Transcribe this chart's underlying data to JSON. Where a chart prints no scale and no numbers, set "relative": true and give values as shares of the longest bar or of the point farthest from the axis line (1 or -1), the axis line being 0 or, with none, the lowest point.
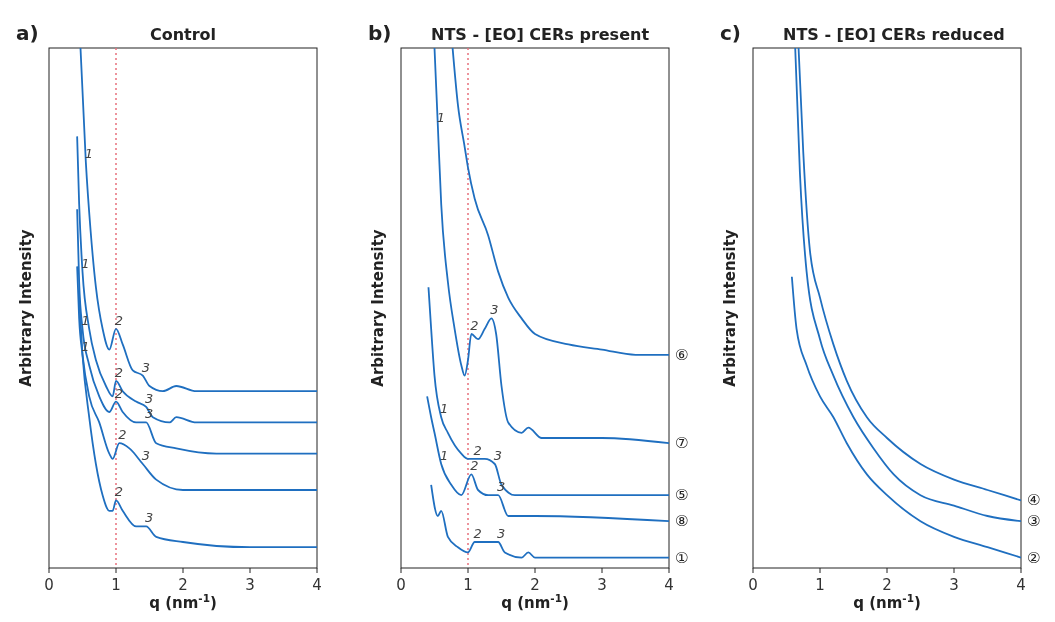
{
  "chart_data": [
    {
      "type": "line",
      "title": "Control",
      "xlabel": "q (nm$^{-1}$)",
      "ylabel": "Arbitrary Intensity",
      "relative": true,
      "xlim": [
        0,
        4
      ],
      "xticks": [
        0,
        1,
        2,
        3,
        4
      ],
      "line_style": "solid",
      "ref_lines": [
        {
          "axis": "x",
          "value": 1,
          "color": "#e8707c",
          "line_style": "dotted"
        }
      ],
      "annotations": [
        "a)",
        {
          "text": "1",
          "x": 0.55,
          "y": 0.78
        },
        {
          "text": "1",
          "x": 0.5,
          "y": 0.57
        },
        {
          "text": "1",
          "x": 0.5,
          "y": 0.46
        },
        {
          "text": "1",
          "x": 0.5,
          "y": 0.41
        },
        {
          "text": "2",
          "x": 1.0,
          "y": 0.46
        },
        {
          "text": "2",
          "x": 1.0,
          "y": 0.36
        },
        {
          "text": "2",
          "x": 1.0,
          "y": 0.32
        },
        {
          "text": "2",
          "x": 1.05,
          "y": 0.24
        },
        {
          "text": "2",
          "x": 1.0,
          "y": 0.13
        },
        {
          "text": "3",
          "x": 1.4,
          "y": 0.37
        },
        {
          "text": "3",
          "x": 1.45,
          "y": 0.31
        },
        {
          "text": "3",
          "x": 1.45,
          "y": 0.28
        },
        {
          "text": "3",
          "x": 1.4,
          "y": 0.2
        },
        {
          "text": "3",
          "x": 1.45,
          "y": 0.08
        }
      ],
      "series": [
        {
          "color": "#1f6fc0",
          "x": [
            0.47,
            0.55,
            0.62,
            0.7,
            0.8,
            0.9,
            1.0,
            1.1,
            1.25,
            1.4,
            1.5,
            1.7,
            1.9,
            2.2,
            3,
            4
          ],
          "values": [
            1.0,
            0.78,
            0.65,
            0.54,
            0.46,
            0.42,
            0.46,
            0.43,
            0.38,
            0.37,
            0.35,
            0.34,
            0.35,
            0.34,
            0.34,
            0.34
          ]
        },
        {
          "color": "#1f6fc0",
          "x": [
            0.42,
            0.45,
            0.5,
            0.6,
            0.7,
            0.85,
            0.95,
            1.0,
            1.1,
            1.3,
            1.45,
            1.55,
            1.8,
            1.9,
            2.2,
            4
          ],
          "values": [
            0.83,
            0.7,
            0.57,
            0.46,
            0.4,
            0.35,
            0.33,
            0.36,
            0.34,
            0.32,
            0.31,
            0.29,
            0.28,
            0.29,
            0.28,
            0.28
          ]
        },
        {
          "color": "#1f6fc0",
          "x": [
            0.42,
            0.45,
            0.5,
            0.6,
            0.75,
            0.9,
            1.0,
            1.1,
            1.3,
            1.45,
            1.6,
            1.9,
            2.5,
            4
          ],
          "values": [
            0.69,
            0.55,
            0.46,
            0.39,
            0.33,
            0.3,
            0.32,
            0.3,
            0.28,
            0.28,
            0.24,
            0.23,
            0.22,
            0.22
          ]
        },
        {
          "color": "#1f6fc0",
          "x": [
            0.42,
            0.45,
            0.5,
            0.6,
            0.75,
            0.9,
            0.95,
            1.05,
            1.2,
            1.4,
            1.6,
            2,
            3,
            4
          ],
          "values": [
            0.58,
            0.48,
            0.41,
            0.33,
            0.28,
            0.22,
            0.21,
            0.24,
            0.23,
            0.2,
            0.17,
            0.15,
            0.15,
            0.15
          ]
        },
        {
          "color": "#1f6fc0",
          "x": [
            0.45,
            0.5,
            0.6,
            0.7,
            0.8,
            0.9,
            0.95,
            1.0,
            1.1,
            1.3,
            1.45,
            1.6,
            2,
            3,
            4
          ],
          "values": [
            0.52,
            0.41,
            0.29,
            0.2,
            0.14,
            0.11,
            0.11,
            0.13,
            0.11,
            0.08,
            0.08,
            0.06,
            0.05,
            0.04,
            0.04
          ]
        }
      ]
    },
    {
      "type": "line",
      "title": "NTS - [EO] CERs present",
      "xlabel": "q (nm$^{-1}$)",
      "ylabel": "Arbitrary Intensity",
      "relative": true,
      "xlim": [
        0,
        4
      ],
      "xticks": [
        0,
        1,
        2,
        3,
        4
      ],
      "line_style": "solid",
      "ref_lines": [
        {
          "axis": "x",
          "value": 1,
          "color": "#e8707c",
          "line_style": "dotted"
        }
      ],
      "annotations": [
        "b)",
        {
          "text": "1",
          "x": 0.55,
          "y": 0.85
        },
        {
          "text": "2",
          "x": 1.05,
          "y": 0.45
        },
        {
          "text": "3",
          "x": 1.35,
          "y": 0.48
        },
        {
          "text": "1",
          "x": 0.6,
          "y": 0.29
        },
        {
          "text": "2",
          "x": 1.1,
          "y": 0.21
        },
        {
          "text": "3",
          "x": 1.4,
          "y": 0.2
        },
        {
          "text": "1",
          "x": 0.6,
          "y": 0.2
        },
        {
          "text": "2",
          "x": 1.05,
          "y": 0.18
        },
        {
          "text": "3",
          "x": 1.45,
          "y": 0.14
        },
        {
          "text": "2",
          "x": 1.1,
          "y": 0.05
        },
        {
          "text": "3",
          "x": 1.45,
          "y": 0.05
        }
      ],
      "series": [
        {
          "name": "⑥",
          "color": "#1f6fc0",
          "x": [
            0.77,
            0.85,
            0.95,
            1.0,
            1.1,
            1.3,
            1.45,
            1.6,
            1.8,
            2.0,
            2.5,
            3,
            3.5,
            4
          ],
          "values": [
            1.0,
            0.89,
            0.81,
            0.77,
            0.71,
            0.64,
            0.57,
            0.52,
            0.48,
            0.45,
            0.43,
            0.42,
            0.41,
            0.41
          ]
        },
        {
          "name": "⑦",
          "color": "#1f6fc0",
          "x": [
            0.5,
            0.55,
            0.6,
            0.7,
            0.8,
            0.9,
            0.95,
            1.0,
            1.05,
            1.15,
            1.25,
            1.35,
            1.42,
            1.5,
            1.6,
            1.8,
            1.9,
            2.1,
            3,
            4
          ],
          "values": [
            1.0,
            0.85,
            0.7,
            0.55,
            0.46,
            0.39,
            0.37,
            0.4,
            0.45,
            0.44,
            0.46,
            0.48,
            0.45,
            0.35,
            0.28,
            0.26,
            0.27,
            0.25,
            0.25,
            0.24
          ]
        },
        {
          "name": "⑤",
          "color": "#1f6fc0",
          "x": [
            0.41,
            0.45,
            0.5,
            0.6,
            0.7,
            0.9,
            1.0,
            1.1,
            1.25,
            1.4,
            1.5,
            1.7,
            2,
            4
          ],
          "values": [
            0.54,
            0.46,
            0.37,
            0.29,
            0.26,
            0.22,
            0.21,
            0.21,
            0.21,
            0.2,
            0.16,
            0.14,
            0.14,
            0.14
          ]
        },
        {
          "name": "⑧",
          "color": "#1f6fc0",
          "x": [
            0.39,
            0.45,
            0.5,
            0.6,
            0.75,
            0.9,
            1.05,
            1.15,
            1.3,
            1.45,
            1.6,
            2,
            4
          ],
          "values": [
            0.33,
            0.29,
            0.26,
            0.2,
            0.16,
            0.14,
            0.18,
            0.15,
            0.14,
            0.14,
            0.1,
            0.1,
            0.09
          ]
        },
        {
          "name": "①",
          "color": "#1f6fc0",
          "x": [
            0.45,
            0.55,
            0.6,
            0.7,
            0.85,
            1.0,
            1.1,
            1.3,
            1.45,
            1.55,
            1.8,
            1.9,
            2.0,
            4
          ],
          "values": [
            0.16,
            0.1,
            0.11,
            0.06,
            0.04,
            0.03,
            0.05,
            0.05,
            0.05,
            0.03,
            0.02,
            0.03,
            0.02,
            0.02
          ]
        }
      ]
    },
    {
      "type": "line",
      "title": "NTS - [EO] CERs reduced",
      "xlabel": "q (nm$^{-1}$)",
      "ylabel": "Arbitrary Intensity",
      "relative": true,
      "xlim": [
        0,
        4
      ],
      "xticks": [
        0,
        1,
        2,
        3,
        4
      ],
      "line_style": "solid",
      "annotations": [
        "c)"
      ],
      "series": [
        {
          "name": "④",
          "color": "#1f6fc0",
          "x": [
            0.68,
            0.75,
            0.85,
            1.0,
            1.2,
            1.4,
            1.7,
            2.0,
            2.5,
            3,
            3.5,
            4
          ],
          "values": [
            1.0,
            0.8,
            0.61,
            0.52,
            0.43,
            0.36,
            0.29,
            0.25,
            0.2,
            0.17,
            0.15,
            0.13
          ]
        },
        {
          "name": "③",
          "color": "#1f6fc0",
          "x": [
            0.63,
            0.7,
            0.8,
            1.0,
            1.2,
            1.5,
            1.8,
            2.1,
            2.5,
            3,
            3.5,
            4
          ],
          "values": [
            1.0,
            0.76,
            0.57,
            0.44,
            0.37,
            0.29,
            0.23,
            0.18,
            0.14,
            0.12,
            0.1,
            0.09
          ]
        },
        {
          "name": "②",
          "color": "#1f6fc0",
          "x": [
            0.58,
            0.65,
            0.8,
            1.0,
            1.2,
            1.4,
            1.7,
            2.0,
            2.5,
            3,
            3.5,
            4
          ],
          "values": [
            0.56,
            0.46,
            0.39,
            0.33,
            0.29,
            0.24,
            0.18,
            0.14,
            0.09,
            0.06,
            0.04,
            0.02
          ]
        }
      ]
    }
  ]
}
